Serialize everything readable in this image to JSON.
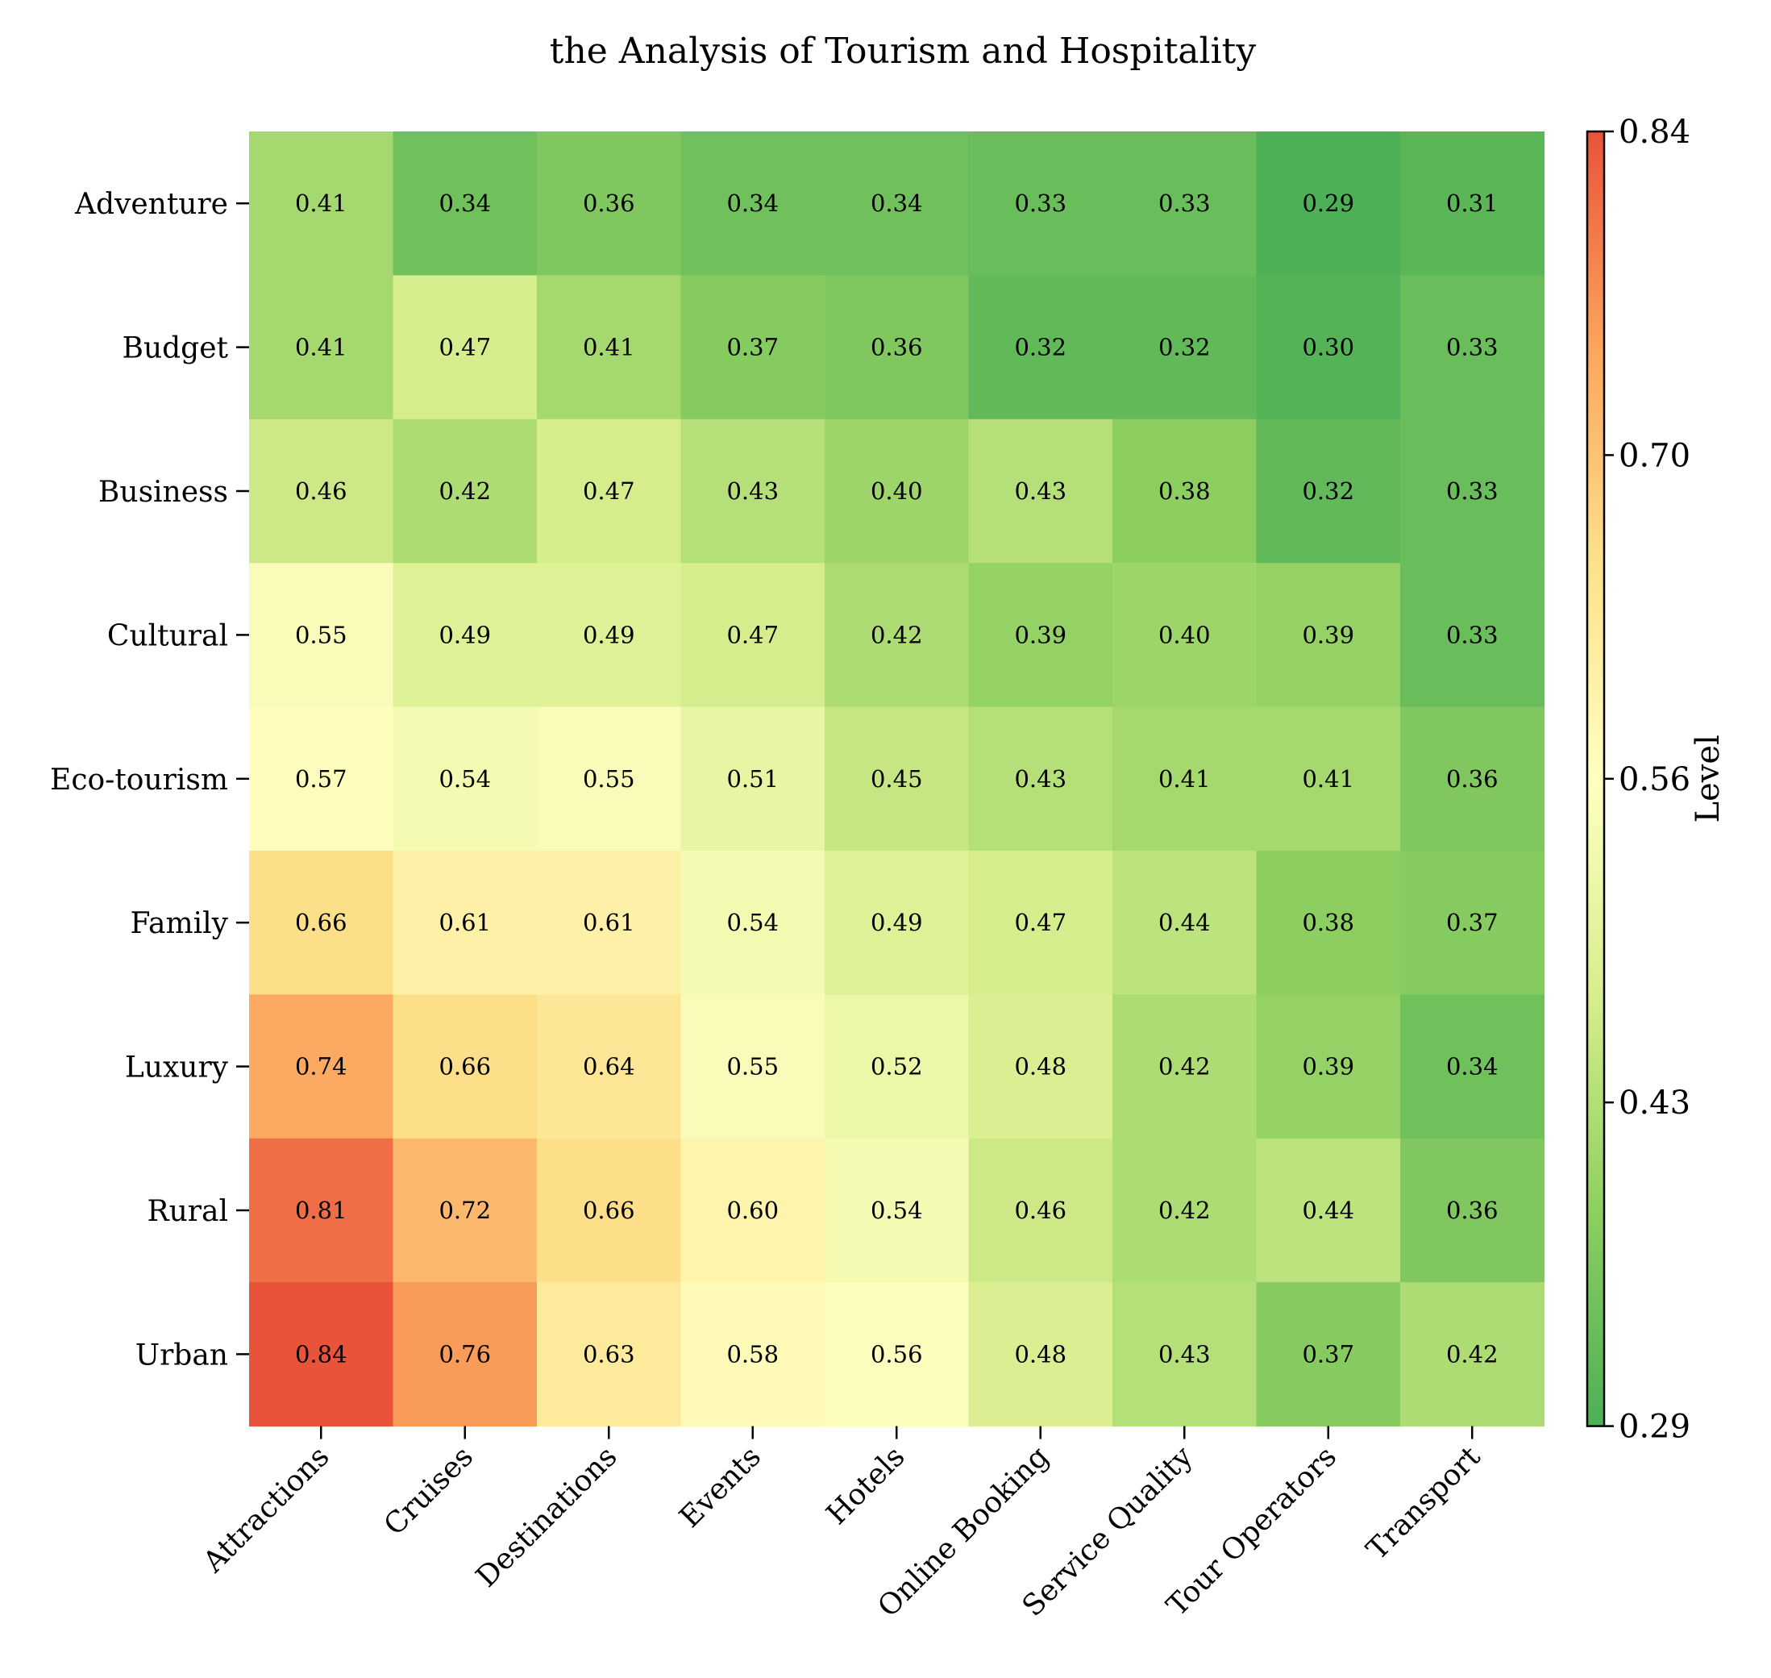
{
  "chart_data": {
    "type": "heatmap",
    "title": "the Analysis of Tourism and Hospitality",
    "rows": [
      "Adventure",
      "Budget",
      "Business",
      "Cultural",
      "Eco-tourism",
      "Family",
      "Luxury",
      "Rural",
      "Urban"
    ],
    "columns": [
      "Attractions",
      "Cruises",
      "Destinations",
      "Events",
      "Hotels",
      "Online Booking",
      "Service Quality",
      "Tour Operators",
      "Transport"
    ],
    "values": [
      [
        0.41,
        0.34,
        0.36,
        0.34,
        0.34,
        0.33,
        0.33,
        0.29,
        0.31
      ],
      [
        0.41,
        0.47,
        0.41,
        0.37,
        0.36,
        0.32,
        0.32,
        0.3,
        0.33
      ],
      [
        0.46,
        0.42,
        0.47,
        0.43,
        0.4,
        0.43,
        0.38,
        0.32,
        0.33
      ],
      [
        0.55,
        0.49,
        0.49,
        0.47,
        0.42,
        0.39,
        0.4,
        0.39,
        0.33
      ],
      [
        0.57,
        0.54,
        0.55,
        0.51,
        0.45,
        0.43,
        0.41,
        0.41,
        0.36
      ],
      [
        0.66,
        0.61,
        0.61,
        0.54,
        0.49,
        0.47,
        0.44,
        0.38,
        0.37
      ],
      [
        0.74,
        0.66,
        0.64,
        0.55,
        0.52,
        0.48,
        0.42,
        0.39,
        0.34
      ],
      [
        0.81,
        0.72,
        0.66,
        0.6,
        0.54,
        0.46,
        0.42,
        0.44,
        0.36
      ],
      [
        0.84,
        0.76,
        0.63,
        0.58,
        0.56,
        0.48,
        0.43,
        0.37,
        0.42
      ]
    ],
    "colorbar": {
      "label": "Level",
      "range": [
        0.29,
        0.84
      ],
      "ticks": [
        "0.84",
        "0.70",
        "0.56",
        "0.43",
        "0.29"
      ],
      "colormap": [
        "#4daf56",
        "#8ecf61",
        "#d8ee8e",
        "#ffffc0",
        "#fde18c",
        "#fca55d",
        "#e8533a"
      ]
    },
    "grid": false,
    "legend": "colorbar-right"
  }
}
